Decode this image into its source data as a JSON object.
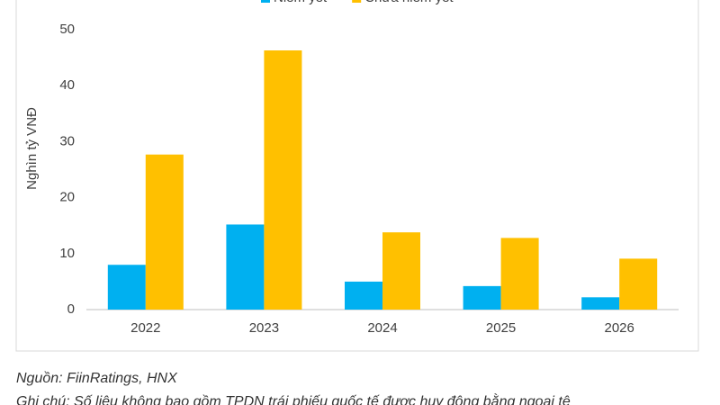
{
  "chart_data": {
    "type": "bar",
    "y_axis_label": "Nghìn tỷ VNĐ",
    "categories": [
      "2022",
      "2023",
      "2024",
      "2025",
      "2026"
    ],
    "series": [
      {
        "name": "Niêm yết",
        "color": "#00b0f0",
        "values": [
          8,
          15.2,
          5,
          4.2,
          2.2
        ]
      },
      {
        "name": "Chưa niêm yết",
        "color": "#ffc000",
        "values": [
          27.7,
          46.3,
          13.8,
          12.8,
          9.1
        ]
      }
    ],
    "ylim": [
      0,
      50
    ],
    "yticks": [
      0,
      10,
      20,
      30,
      40,
      50
    ],
    "grid": false,
    "legend": "top",
    "source": "Nguồn: FiinRatings, HNX",
    "note": "Ghi chú: Số liệu không bao gồm TPDN trái phiếu quốc tế được huy động bằng ngoại tệ"
  }
}
